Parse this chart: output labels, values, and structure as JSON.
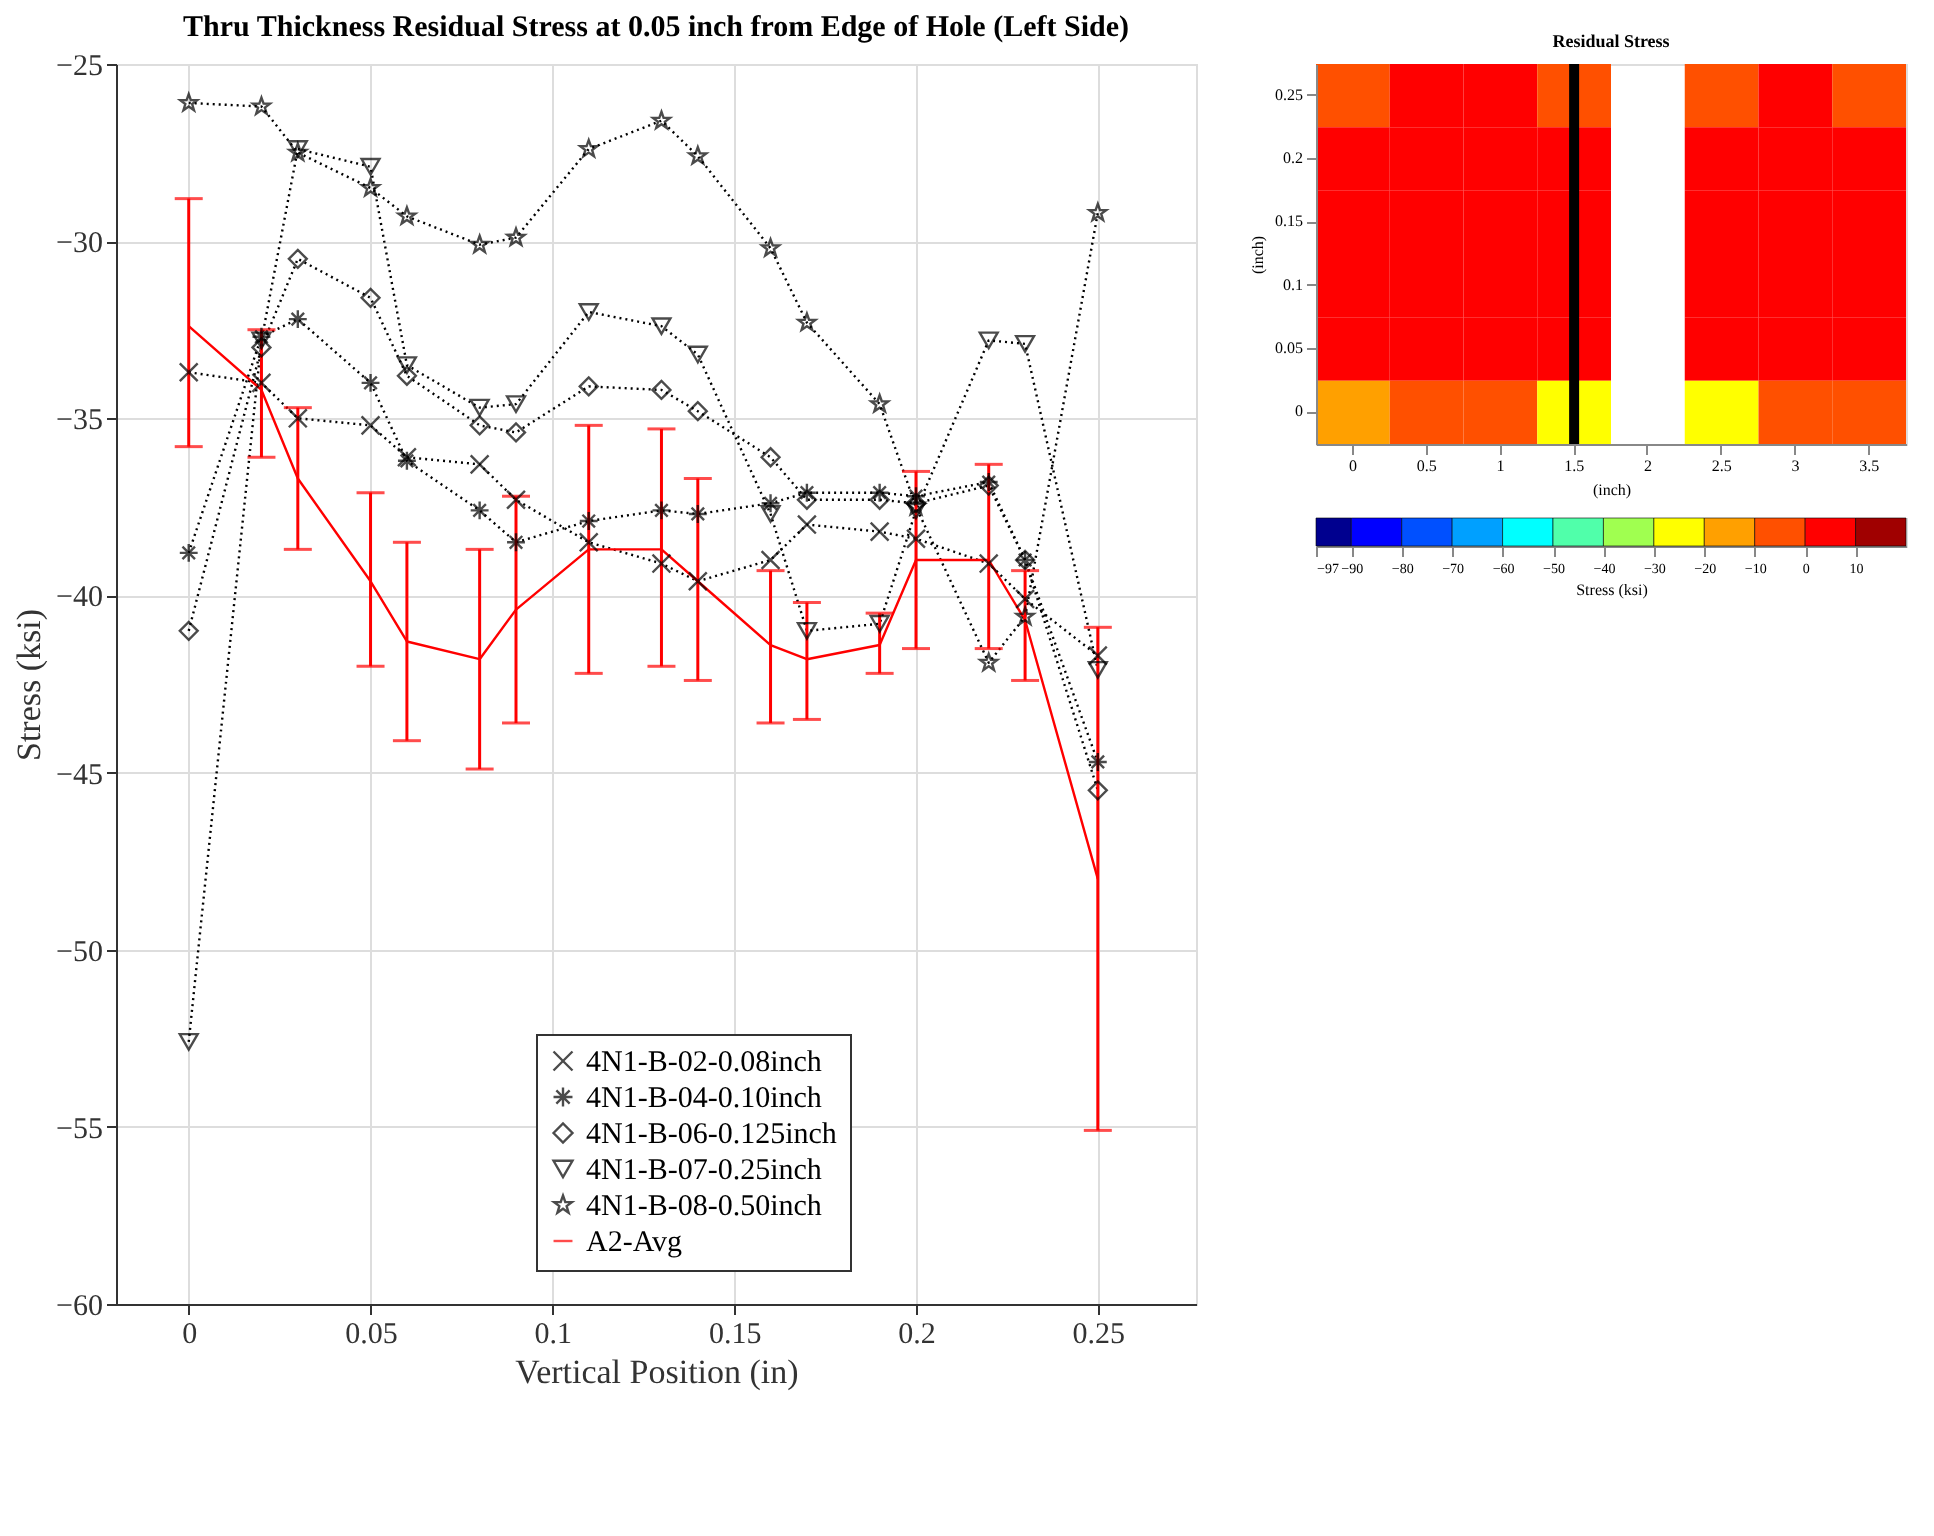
{
  "chart_data": [
    {
      "type": "line",
      "title": "Thru Thickness Residual Stress at 0.05 inch from Edge of Hole (Left Side)",
      "xlabel": "Vertical Position (in)",
      "ylabel": "Stress (ksi)",
      "x": [
        0,
        0.02,
        0.03,
        0.05,
        0.06,
        0.08,
        0.09,
        0.11,
        0.13,
        0.14,
        0.16,
        0.17,
        0.19,
        0.2,
        0.22,
        0.23,
        0.25
      ],
      "series": [
        {
          "name": "4N1-B-02-0.08inch",
          "color": "#000000",
          "marker": "x",
          "line_style": "dotted",
          "values": [
            -33.7,
            -34.0,
            -35.0,
            -35.2,
            -36.1,
            -36.3,
            -37.3,
            -38.5,
            -39.1,
            -39.6,
            -39.0,
            -38.0,
            -38.2,
            -38.4,
            -39.1,
            -40.1,
            -41.7
          ]
        },
        {
          "name": "4N1-B-04-0.10inch",
          "color": "#000000",
          "marker": "cross",
          "line_style": "dotted",
          "values": [
            -38.8,
            -32.7,
            -32.2,
            -34.0,
            -36.2,
            -37.6,
            -38.5,
            -37.9,
            -37.6,
            -37.7,
            -37.4,
            -37.1,
            -37.1,
            -37.2,
            -36.8,
            -39.0,
            -44.7
          ]
        },
        {
          "name": "4N1-B-06-0.125inch",
          "color": "#000000",
          "marker": "diamond",
          "line_style": "dotted",
          "values": [
            -41.0,
            -33.0,
            -30.5,
            -31.6,
            -33.8,
            -35.2,
            -35.4,
            -34.1,
            -34.2,
            -34.8,
            -36.1,
            -37.3,
            -37.3,
            -37.4,
            -36.9,
            -39.0,
            -45.5
          ]
        },
        {
          "name": "4N1-B-07-0.25inch",
          "color": "#000000",
          "marker": "triangle-down",
          "line_style": "dotted",
          "values": [
            -52.6,
            -32.8,
            -27.4,
            -27.9,
            -33.5,
            -34.7,
            -34.6,
            -32.0,
            -32.4,
            -33.2,
            -37.7,
            -41.0,
            -40.8,
            -37.6,
            -32.8,
            -32.9,
            -42.1
          ]
        },
        {
          "name": "4N1-B-08-0.50inch",
          "color": "#000000",
          "marker": "star",
          "line_style": "dotted",
          "values": [
            -26.1,
            -26.2,
            -27.5,
            -28.5,
            -29.3,
            -30.1,
            -29.9,
            -27.4,
            -26.6,
            -27.6,
            -30.2,
            -32.3,
            -34.6,
            -37.5,
            -41.9,
            -40.6,
            -29.2
          ]
        },
        {
          "name": "A2-Avg",
          "color": "#ff0000",
          "marker": "none",
          "line_style": "solid",
          "values": [
            -32.4,
            -34.2,
            -36.7,
            -39.6,
            -41.3,
            -41.8,
            -40.4,
            -38.7,
            -38.7,
            -39.6,
            -41.4,
            -41.8,
            -41.4,
            -39.0,
            -39.0,
            -40.7,
            -48.0
          ],
          "errors": [
            [
              -35.8,
              -28.8
            ],
            [
              -36.1,
              -32.5
            ],
            [
              -38.7,
              -34.7
            ],
            [
              -42.0,
              -37.1
            ],
            [
              -44.1,
              -38.5
            ],
            [
              -44.9,
              -38.7
            ],
            [
              -43.6,
              -37.2
            ],
            [
              -42.2,
              -35.2
            ],
            [
              -42.0,
              -35.3
            ],
            [
              -42.4,
              -36.7
            ],
            [
              -43.6,
              -39.3
            ],
            [
              -43.5,
              -40.2
            ],
            [
              -42.2,
              -40.5
            ],
            [
              -41.5,
              -36.5
            ],
            [
              -41.5,
              -36.3
            ],
            [
              -42.4,
              -39.3
            ],
            [
              -55.1,
              -40.9
            ]
          ]
        }
      ],
      "xlim": [
        -0.02,
        0.277
      ],
      "ylim": [
        -60,
        -25
      ],
      "xticks": [
        0,
        0.05,
        0.1,
        0.15,
        0.2,
        0.25
      ],
      "yticks": [
        -60,
        -55,
        -50,
        -45,
        -40,
        -35,
        -30,
        -25
      ],
      "grid": true,
      "legend": "bottom"
    },
    {
      "type": "heatmap",
      "title": "Residual Stress",
      "xlabel": "(inch)",
      "ylabel": "(inch)",
      "clabel": "Stress (ksi)",
      "categories": [
        "0",
        "0.5",
        "1",
        "1.5",
        "2",
        "2.5",
        "3",
        "3.5"
      ],
      "y_categories": [
        "0.25",
        "0.2",
        "0.15",
        "0.1",
        "0.05",
        "0"
      ],
      "cells": [
        [
          -5,
          5,
          5,
          -5,
          null,
          -5,
          5,
          -5
        ],
        [
          5,
          5,
          5,
          5,
          null,
          5,
          5,
          5
        ],
        [
          5,
          5,
          5,
          5,
          null,
          5,
          5,
          5
        ],
        [
          5,
          5,
          5,
          5,
          null,
          5,
          5,
          5
        ],
        [
          5,
          5,
          5,
          5,
          null,
          5,
          5,
          5
        ],
        [
          -15,
          -5,
          -5,
          -25,
          null,
          -25,
          -5,
          -5
        ]
      ],
      "clim": [
        -97,
        20
      ],
      "cticks": [
        -97,
        -90,
        -80,
        -70,
        -60,
        -50,
        -40,
        -30,
        -20,
        -10,
        0,
        10
      ],
      "colors": [
        "#00008f",
        "#0000ff",
        "#0050ff",
        "#00a0ff",
        "#00ffff",
        "#50ffaa",
        "#a0ff50",
        "#ffff00",
        "#ffa000",
        "#ff5000",
        "#ff0000",
        "#a00000"
      ],
      "ref_lines": [
        {
          "axis": "x",
          "value": "1.5",
          "color": "#000000"
        }
      ]
    }
  ]
}
